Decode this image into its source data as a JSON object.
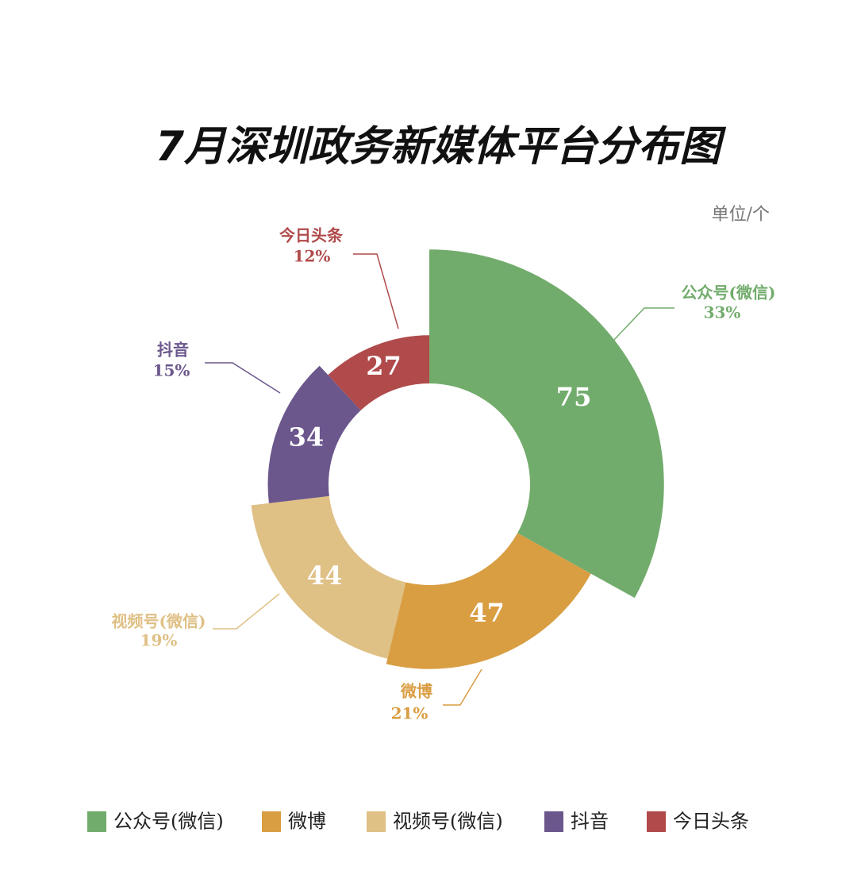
{
  "chart_data": {
    "type": "rose-donut",
    "title": "7月深圳政务新媒体平台分布图",
    "unit": "单位/个",
    "categories": [
      "公众号(微信)",
      "微博",
      "视频号(微信)",
      "抖音",
      "今日头条"
    ],
    "values": [
      75,
      47,
      44,
      34,
      27
    ],
    "percents": [
      33,
      21,
      19,
      15,
      12
    ],
    "percent_labels": [
      "33%",
      "21%",
      "19%",
      "15%",
      "12%"
    ],
    "colors": [
      "#72ac6c",
      "#d99d42",
      "#dfc085",
      "#6b578c",
      "#b04a4b"
    ],
    "legend": "bottom"
  }
}
